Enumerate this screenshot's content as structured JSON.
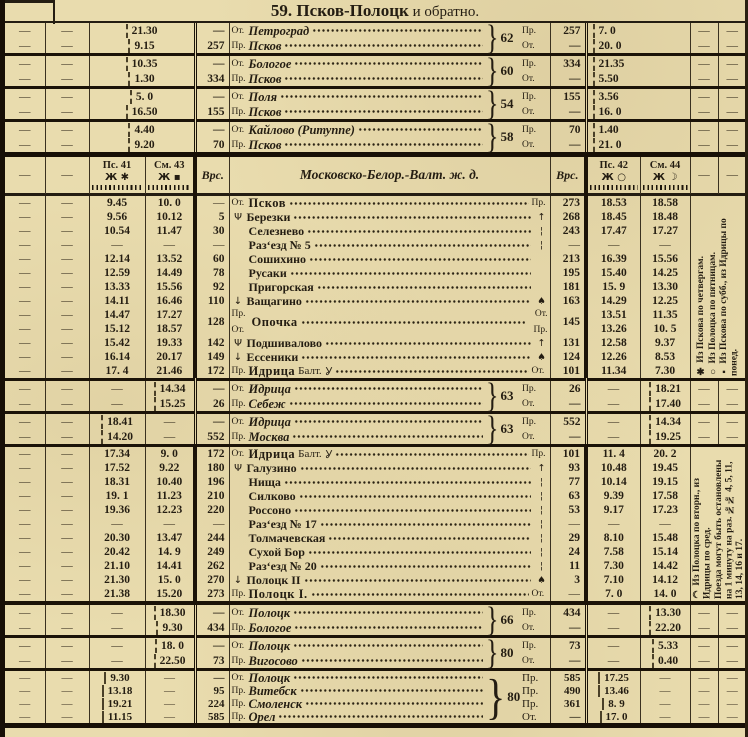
{
  "title": {
    "num": "59.",
    "main": " Псков-Полоцк",
    "rest": " и обратно."
  },
  "dash": "—",
  "header": {
    "ps41": "Пс. 41",
    "ps41_days": "Ж ✱",
    "sm43": "См. 43",
    "sm43_days": "Ж ▪",
    "verst": "Врс.",
    "railway": "Московско-Белор.-Валт. ж. д.",
    "ps42": "Пс. 42",
    "ps42_days": "Ж ○",
    "sm44": "См. 44",
    "sm44_days": "Ж ☽"
  },
  "pair_sections": [
    {
      "key": "train-62-petrograd-pskov",
      "train": "62",
      "ls": "merge",
      "rs": "merge",
      "rows": [
        {
          "tm": "21.30",
          "vL": "—",
          "pre": "От.",
          "name": "Петроград",
          "lab": "Пр.",
          "vR": "257",
          "tr": "7. 0"
        },
        {
          "tm": "9.15",
          "vL": "257",
          "pre": "Пр.",
          "name": "Псков",
          "lab": "От.",
          "vR": "—",
          "tr": "20. 0"
        }
      ]
    },
    {
      "key": "train-60-bologoe-pskov",
      "train": "60",
      "ls": "merge",
      "rs": "merge",
      "rows": [
        {
          "tm": "10.35",
          "vL": "—",
          "pre": "От.",
          "name": "Бологое",
          "lab": "Пр.",
          "vR": "334",
          "tr": "21.35"
        },
        {
          "tm": "1.30",
          "vL": "334",
          "pre": "Пр.",
          "name": "Псков",
          "lab": "От.",
          "vR": "—",
          "tr": "5.50"
        }
      ]
    },
    {
      "key": "train-54-polya-pskov",
      "train": "54",
      "ls": "merge",
      "rs": "merge",
      "rows": [
        {
          "tm": "5. 0",
          "vL": "—",
          "pre": "От.",
          "name": "Поля",
          "lab": "Пр.",
          "vR": "155",
          "tr": "3.56"
        },
        {
          "tm": "16.50",
          "vL": "155",
          "pre": "Пр.",
          "name": "Псков",
          "lab": "От.",
          "vR": "—",
          "tr": "16. 0"
        }
      ]
    },
    {
      "key": "train-58-kailovo-pskov",
      "train": "58",
      "ls": "merge",
      "rs": "merge",
      "rows": [
        {
          "tm": "4.40",
          "vL": "—",
          "pre": "От.",
          "name": "Кайлово (Ритуппе)",
          "lab": "Пр.",
          "vR": "70",
          "tr": "1.40"
        },
        {
          "tm": "9.20",
          "vL": "70",
          "pre": "Пр.",
          "name": "Псков",
          "lab": "От.",
          "vR": "—",
          "tr": "21. 0"
        }
      ]
    },
    {
      "key": "train-63-idritsa-sebezh",
      "train": "63",
      "ls": "t2",
      "rs": "t4",
      "rows": [
        {
          "tm": "14.34",
          "vL": "—",
          "pre": "От.",
          "name": "Идрица",
          "lab": "Пр.",
          "vR": "26",
          "tr": "18.21"
        },
        {
          "tm": "15.25",
          "vL": "26",
          "pre": "Пр.",
          "name": "Себеж",
          "lab": "От.",
          "vR": "—",
          "tr": "17.40"
        }
      ]
    },
    {
      "key": "train-63-idritsa-moskva",
      "train": "63",
      "ls": "t1",
      "rs": "t4",
      "rows": [
        {
          "tm": "18.41",
          "vL": "—",
          "pre": "От.",
          "name": "Идрица",
          "lab": "Пр.",
          "vR": "552",
          "tr": "14.34"
        },
        {
          "tm": "14.20",
          "vL": "552",
          "pre": "Пр.",
          "name": "Москва",
          "lab": "От.",
          "vR": "—",
          "tr": "19.25"
        }
      ]
    },
    {
      "key": "train-66-polotsk-bologoe",
      "train": "66",
      "ls": "t2",
      "rs": "t4",
      "rows": [
        {
          "tm": "18.30",
          "vL": "—",
          "pre": "От.",
          "name": "Полоцк",
          "lab": "Пр.",
          "vR": "434",
          "tr": "13.30"
        },
        {
          "tm": "9.30",
          "vL": "434",
          "pre": "Пр.",
          "name": "Бологое",
          "lab": "От.",
          "vR": "—",
          "tr": "22.20"
        }
      ]
    },
    {
      "key": "train-80-polotsk-vigosovo",
      "train": "80",
      "ls": "t2",
      "rs": "t4",
      "rows": [
        {
          "tm": "18. 0",
          "vL": "—",
          "pre": "От.",
          "name": "Полоцк",
          "lab": "Пр.",
          "vR": "73",
          "tr": "5.33"
        },
        {
          "tm": "22.50",
          "vL": "73",
          "pre": "Пр.",
          "name": "Вигосово",
          "lab": "От.",
          "vR": "—",
          "tr": "0.40"
        }
      ]
    },
    {
      "key": "train-80-polotsk-orel",
      "train": "80",
      "ls": "t1",
      "rs": "t3",
      "rows": [
        {
          "tm": "9.30",
          "vL": "—",
          "pre": "От.",
          "name": "Полоцк",
          "lab": "Пр.",
          "vR": "585",
          "tr": "17.25"
        },
        {
          "tm": "13.18",
          "vL": "95",
          "pre": "Пр.",
          "name": "Витебск",
          "lab": "Пр.",
          "vR": "490",
          "tr": "13.46"
        },
        {
          "tm": "19.21",
          "vL": "224",
          "pre": "Пр.",
          "name": "Смоленск",
          "lab": "Пр.",
          "vR": "361",
          "tr": "8. 9"
        },
        {
          "tm": "11.15",
          "vL": "585",
          "pre": "Пр.",
          "name": "Орел",
          "lab": "От.",
          "vR": "—",
          "tr": "17. 0"
        }
      ]
    }
  ],
  "main_upper": {
    "key": "pskov-idritsa-line",
    "rows": [
      {
        "t1": "9.45",
        "t2": "10. 0",
        "vL": "—",
        "pre": "От.",
        "name": "Псков",
        "b": 1,
        "suf": "Пр.",
        "vR": "273",
        "t3": "18.53",
        "t4": "18.58"
      },
      {
        "t1": "9.56",
        "t2": "10.12",
        "vL": "5",
        "pre": "Ψ",
        "name": "Березки",
        "suf": "↑",
        "vR": "268",
        "t3": "18.45",
        "t4": "18.48"
      },
      {
        "t1": "10.54",
        "t2": "11.47",
        "vL": "30",
        "pre": "",
        "name": "Селезнево",
        "suf": "¦",
        "vR": "243",
        "t3": "17.47",
        "t4": "17.27"
      },
      {
        "t1": "—",
        "t2": "—",
        "vL": "—",
        "pre": "",
        "name": "Раз‘езд № 5",
        "suf": "¦",
        "vR": "—",
        "t3": "—",
        "t4": "—"
      },
      {
        "t1": "12.14",
        "t2": "13.52",
        "vL": "60",
        "pre": "",
        "name": "Сошихино",
        "suf": "",
        "vR": "213",
        "t3": "16.39",
        "t4": "15.56"
      },
      {
        "t1": "12.59",
        "t2": "14.49",
        "vL": "78",
        "pre": "",
        "name": "Русаки",
        "suf": "",
        "vR": "195",
        "t3": "15.40",
        "t4": "14.25"
      },
      {
        "t1": "13.33",
        "t2": "15.56",
        "vL": "92",
        "pre": "",
        "name": "Пригорская",
        "suf": "",
        "vR": "181",
        "t3": "15. 9",
        "t4": "13.30"
      },
      {
        "t1": "14.11",
        "t2": "16.46",
        "vL": "110",
        "pre": "↓",
        "name": "Ващагино",
        "suf": "♠",
        "vR": "163",
        "t3": "14.29",
        "t4": "12.25"
      },
      {
        "op": 1,
        "vL": "128",
        "name": "Опочка",
        "tl": "Пр.",
        "bl": "От.",
        "tr2": "От.",
        "br2": "Пр.",
        "vR": "145",
        "rows": [
          [
            "14.47",
            "17.27",
            "13.51",
            "11.35"
          ],
          [
            "15.12",
            "18.57",
            "13.26",
            "10. 5"
          ]
        ]
      },
      {
        "t1": "15.42",
        "t2": "19.33",
        "vL": "142",
        "pre": "Ψ",
        "name": "Подшивалово",
        "suf": "↑",
        "vR": "131",
        "t3": "12.58",
        "t4": "9.37"
      },
      {
        "t1": "16.14",
        "t2": "20.17",
        "vL": "149",
        "pre": "↓",
        "name": "Ессеники",
        "suf": "♠",
        "vR": "124",
        "t3": "12.26",
        "t4": "8.53"
      },
      {
        "t1": "17. 4",
        "t2": "21.46",
        "vL": "172",
        "pre": "Пр.",
        "name": "Идрица",
        "tag": "Балт.",
        "glass": 1,
        "b": 1,
        "suf": "От.",
        "vR": "101",
        "t3": "11.34",
        "t4": "7.30"
      }
    ]
  },
  "main_lower": {
    "key": "idritsa-polotsk-line",
    "rows": [
      {
        "t1": "17.34",
        "t2": "9. 0",
        "vL": "172",
        "pre": "От.",
        "name": "Идрица",
        "tag": "Балт.",
        "glass": 1,
        "b": 1,
        "suf": "Пр.",
        "vR": "101",
        "t3": "11. 4",
        "t4": "20. 2"
      },
      {
        "t1": "17.52",
        "t2": "9.22",
        "vL": "180",
        "pre": "Ψ",
        "name": "Галузино",
        "suf": "↑",
        "vR": "93",
        "t3": "10.48",
        "t4": "19.45"
      },
      {
        "t1": "18.31",
        "t2": "10.40",
        "vL": "196",
        "pre": "",
        "name": "Нища",
        "suf": "¦",
        "vR": "77",
        "t3": "10.14",
        "t4": "19.15"
      },
      {
        "t1": "19. 1",
        "t2": "11.23",
        "vL": "210",
        "pre": "",
        "name": "Силково",
        "suf": "¦",
        "vR": "63",
        "t3": "9.39",
        "t4": "17.58"
      },
      {
        "t1": "19.36",
        "t2": "12.23",
        "vL": "220",
        "pre": "",
        "name": "Россоно",
        "suf": "¦",
        "vR": "53",
        "t3": "9.17",
        "t4": "17.23"
      },
      {
        "t1": "—",
        "t2": "—",
        "vL": "—",
        "pre": "",
        "name": "Раз‘езд № 17",
        "suf": "¦",
        "vR": "—",
        "t3": "—",
        "t4": "—"
      },
      {
        "t1": "20.30",
        "t2": "13.47",
        "vL": "244",
        "pre": "",
        "name": "Толмачевская",
        "suf": "¦",
        "vR": "29",
        "t3": "8.10",
        "t4": "15.48"
      },
      {
        "t1": "20.42",
        "t2": "14. 9",
        "vL": "249",
        "pre": "",
        "name": "Сухой Бор",
        "suf": "¦",
        "vR": "24",
        "t3": "7.58",
        "t4": "15.14"
      },
      {
        "t1": "21.10",
        "t2": "14.41",
        "vL": "262",
        "pre": "",
        "name": "Раз‘езд № 20",
        "suf": "¦",
        "vR": "11",
        "t3": "7.30",
        "t4": "14.42"
      },
      {
        "t1": "21.30",
        "t2": "15. 0",
        "vL": "270",
        "pre": "↓",
        "name": "Полоцк II",
        "suf": "♠",
        "vR": "3",
        "t3": "7.10",
        "t4": "14.12"
      },
      {
        "t1": "21.38",
        "t2": "15.20",
        "vL": "273",
        "pre": "Пр.",
        "name": "Полоцк I.",
        "b": 1,
        "suf": "От.",
        "vR": "—",
        "t3": "7. 0",
        "t4": "14. 0"
      }
    ]
  },
  "notes_upper": [
    {
      "sym": "✱",
      "text": "Из Пскова по четвергам."
    },
    {
      "sym": "○",
      "text": "Из Полоцка по пятницам."
    },
    {
      "sym": "▪",
      "text": "Из Пскова по субб., из Идрицы по понед."
    }
  ],
  "notes_lower": [
    {
      "sym": "☽",
      "text": "Из Полоцка по вторн., из Идрицы по сред."
    },
    {
      "sym": "",
      "text": "Поезда могут быть остановлены на 1 минуту на раз. №№ 4, 5, 11, 13, 14, 16 и 17."
    }
  ]
}
